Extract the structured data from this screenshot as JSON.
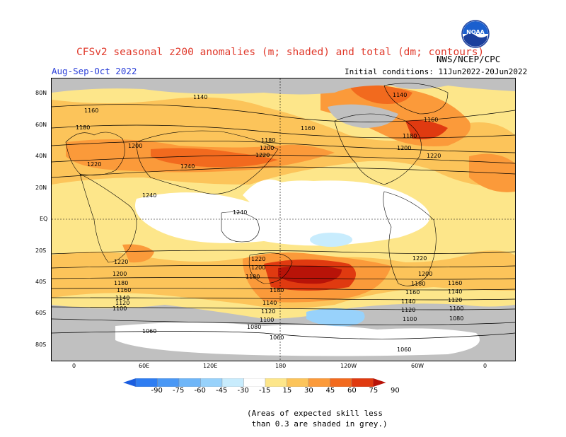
{
  "header": {
    "title": "CFSv2 seasonal z200 anomalies (m; shaded) and total (dm; contours)",
    "season": "Aug-Sep-Oct 2022",
    "agency": "NWS/NCEP/CPC",
    "initial_conditions": "Initial conditions: 11Jun2022-20Jun2022",
    "logo_text": "NOAA"
  },
  "map": {
    "projection": "cylindrical equidistant",
    "lat_labels": [
      "80N",
      "60N",
      "40N",
      "20N",
      "EQ",
      "20S",
      "40S",
      "60S",
      "80S"
    ],
    "lon_labels": [
      "0",
      "60E",
      "120E",
      "180",
      "120W",
      "60W",
      "0"
    ],
    "contour_labels": [
      "1140",
      "1160",
      "1180",
      "1200",
      "1220",
      "1240",
      "1240",
      "1240",
      "1180",
      "1200",
      "1220",
      "1160",
      "1140",
      "1160",
      "1180",
      "1200",
      "1220",
      "1220",
      "1200",
      "1180",
      "1160",
      "1140",
      "1120",
      "1100",
      "1220",
      "1200",
      "1180",
      "1160",
      "1140",
      "1120",
      "1100",
      "1060",
      "1080",
      "1060",
      "1220",
      "1180",
      "1140",
      "1120",
      "1100",
      "1200",
      "1180",
      "1160",
      "1140",
      "1120",
      "1100",
      "1080",
      "1060"
    ]
  },
  "colorbar": {
    "labels": [
      "-90",
      "-75",
      "-60",
      "-45",
      "-30",
      "-15",
      "15",
      "30",
      "45",
      "60",
      "75",
      "90"
    ],
    "colors": [
      "#1a5ee0",
      "#2e7df2",
      "#4a98f5",
      "#6fb6f8",
      "#98d2fb",
      "#c8ecfd",
      "#ffffff",
      "#fde68a",
      "#fcc45a",
      "#fb9a3a",
      "#f26a1e",
      "#e03a10",
      "#b81308"
    ]
  },
  "footnote": "(Areas of expected skill less\n than 0.3 are shaded in grey.)",
  "colors": {
    "title": "#e0392b",
    "season": "#2b3fd8",
    "skill_mask": "#c0c0c0"
  }
}
